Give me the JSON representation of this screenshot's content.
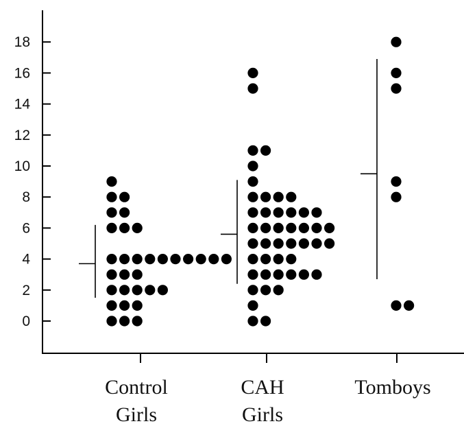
{
  "chart_data": {
    "type": "scatter",
    "subtype": "dot-plot",
    "title": "",
    "xlabel": "",
    "ylabel": "",
    "ylim": [
      -2,
      20
    ],
    "y_ticks": [
      0,
      2,
      4,
      6,
      8,
      10,
      12,
      14,
      16,
      18
    ],
    "grid": false,
    "legend": "none",
    "marker_color": "#000000",
    "categories": [
      {
        "lines": [
          "Control",
          "Girls"
        ]
      },
      {
        "lines": [
          "CAH",
          "Girls"
        ]
      },
      {
        "lines": [
          "Tomboys"
        ]
      }
    ],
    "series": [
      {
        "values": [
          0,
          0,
          0,
          1,
          1,
          1,
          2,
          2,
          2,
          2,
          2,
          3,
          3,
          3,
          4,
          4,
          4,
          4,
          4,
          4,
          4,
          4,
          4,
          4,
          6,
          6,
          6,
          7,
          7,
          8,
          8,
          9
        ],
        "stats": {
          "center": 3.7,
          "low": 1.5,
          "high": 6.2
        }
      },
      {
        "values": [
          0,
          0,
          1,
          2,
          2,
          2,
          3,
          3,
          3,
          3,
          3,
          3,
          4,
          4,
          4,
          4,
          5,
          5,
          5,
          5,
          5,
          5,
          5,
          6,
          6,
          6,
          6,
          6,
          6,
          6,
          7,
          7,
          7,
          7,
          7,
          7,
          8,
          8,
          8,
          8,
          9,
          10,
          11,
          11,
          15,
          16
        ],
        "stats": {
          "center": 5.6,
          "low": 2.4,
          "high": 9.1
        }
      },
      {
        "values": [
          1,
          1,
          8,
          9,
          15,
          16,
          18
        ],
        "stats": {
          "center": 9.5,
          "low": 2.7,
          "high": 16.9
        }
      }
    ]
  }
}
